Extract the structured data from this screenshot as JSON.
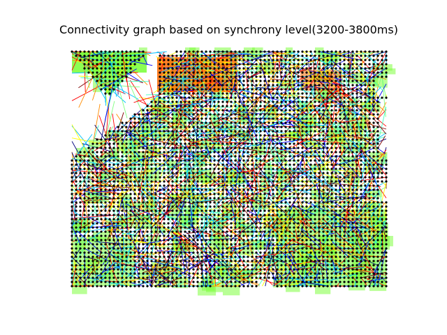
{
  "figure": {
    "title": "Connectivity graph based on synchrony level(3200-3800ms)"
  },
  "graph": {
    "node_color": "#000000",
    "edge_colormap": [
      "#00007f",
      "#0000ff",
      "#00bfff",
      "#40ffbf",
      "#7fff7f",
      "#ffff00",
      "#ff8c00",
      "#ff0000",
      "#7f0000"
    ]
  }
}
